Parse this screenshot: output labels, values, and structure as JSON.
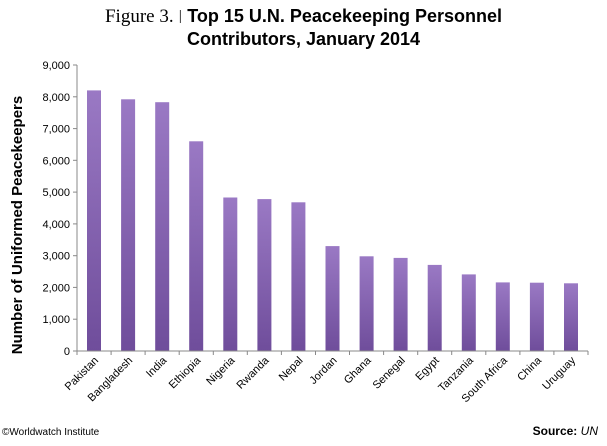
{
  "figure_label": "Figure 3.",
  "separator": "|",
  "title_line1": "Top 15 U.N. Peacekeeping Personnel",
  "title_line2": "Contributors, January 2014",
  "credit": "©Worldwatch Institute",
  "source_label": "Source:",
  "source_value": "UN",
  "colors": {
    "bar_light": "#9a79c4",
    "bar_dark": "#6f4d9b",
    "axis": "#888888"
  },
  "chart_data": {
    "type": "bar",
    "title": "Top 15 U.N. Peacekeeping Personnel Contributors, January 2014",
    "xlabel": "",
    "ylabel": "Number of Uniformed Peacekeepers",
    "ylim": [
      0,
      9000
    ],
    "yticks": [
      0,
      1000,
      2000,
      3000,
      4000,
      5000,
      6000,
      7000,
      8000,
      9000
    ],
    "ytick_labels": [
      "0",
      "1,000",
      "2,000",
      "3,000",
      "4,000",
      "5,000",
      "6,000",
      "7,000",
      "8,000",
      "9,000"
    ],
    "grid": false,
    "legend": "none",
    "categories": [
      "Pakistan",
      "Bangladesh",
      "India",
      "Ethiopia",
      "Nigeria",
      "Rwanda",
      "Nepal",
      "Jordan",
      "Ghana",
      "Senegal",
      "Egypt",
      "Tanzania",
      "South Africa",
      "China",
      "Uruguay"
    ],
    "values": [
      8200,
      7920,
      7830,
      6600,
      4830,
      4780,
      4680,
      3300,
      2980,
      2930,
      2710,
      2410,
      2160,
      2150,
      2130
    ]
  }
}
